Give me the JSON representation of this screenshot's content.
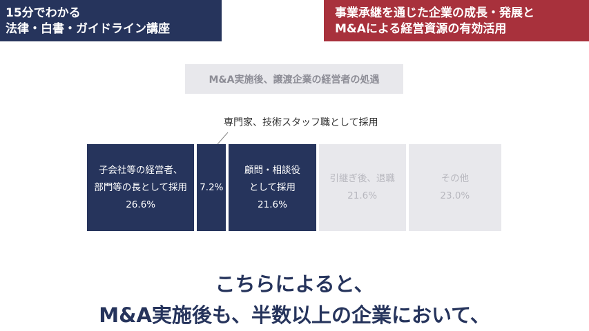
{
  "banners": {
    "left": [
      "15分でわかる",
      "法律・白書・ガイドライン講座"
    ],
    "right": [
      "事業承継を通じた企業の成長・発展と",
      "M&Aによる経営資源の有効活用"
    ]
  },
  "chart_data": {
    "type": "bar",
    "subtype": "100% stacked horizontal bar",
    "title": "M&A実施後、譲渡企業の経営者の処遇",
    "unit": "%",
    "segments": [
      {
        "label_lines": [
          "子会社等の経営者、",
          "部門等の長として採用"
        ],
        "value": 26.6,
        "value_label": "26.6%",
        "highlight": true
      },
      {
        "label_lines": [],
        "value": 7.2,
        "value_label": "7.2%",
        "highlight": true,
        "callout": "専門家、技術スタッフ職として採用"
      },
      {
        "label_lines": [
          "顧問・相談役",
          "として採用"
        ],
        "value": 21.6,
        "value_label": "21.6%",
        "highlight": true
      },
      {
        "label_lines": [
          "引継ぎ後、退職"
        ],
        "value": 21.6,
        "value_label": "21.6%",
        "highlight": false
      },
      {
        "label_lines": [
          "その他"
        ],
        "value": 23.0,
        "value_label": "23.0%",
        "highlight": false
      }
    ],
    "colors": {
      "highlight": "#26345c",
      "muted": "#e8e8ec",
      "muted_text": "#b7b7be"
    }
  },
  "conclusion": [
    "こちらによると、",
    "M&A実施後も、半数以上の企業において、"
  ]
}
